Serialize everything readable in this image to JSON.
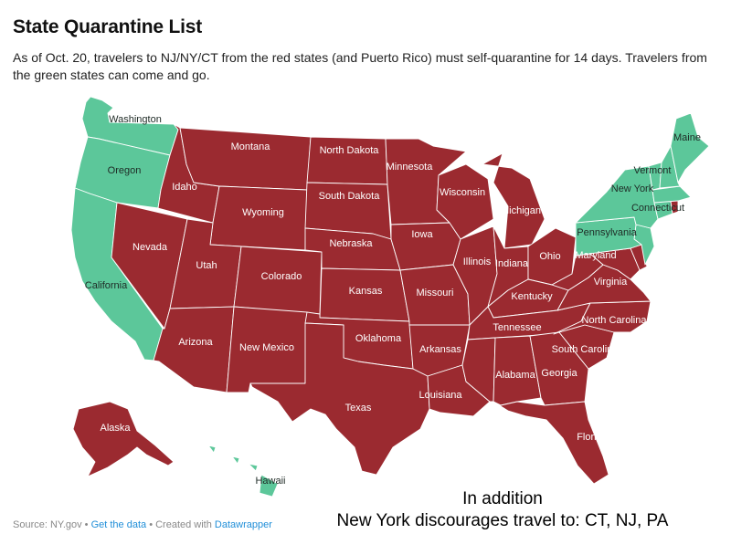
{
  "title": "State Quarantine List",
  "description": "As of Oct. 20, travelers to NJ/NY/CT from the red states (and Puerto Rico) must self-quarantine for 14 days. Travelers from the green states can come and go.",
  "colors": {
    "quarantine": "#9b2a30",
    "free": "#5cc79a",
    "border": "#ffffff"
  },
  "states": {
    "washington": {
      "label": "Washington",
      "status": "free"
    },
    "oregon": {
      "label": "Oregon",
      "status": "free"
    },
    "california": {
      "label": "California",
      "status": "free"
    },
    "idaho": {
      "label": "Idaho",
      "status": "quarantine"
    },
    "montana": {
      "label": "Montana",
      "status": "quarantine"
    },
    "wyoming": {
      "label": "Wyoming",
      "status": "quarantine"
    },
    "nevada": {
      "label": "Nevada",
      "status": "quarantine"
    },
    "utah": {
      "label": "Utah",
      "status": "quarantine"
    },
    "colorado": {
      "label": "Colorado",
      "status": "quarantine"
    },
    "arizona": {
      "label": "Arizona",
      "status": "quarantine"
    },
    "new_mexico": {
      "label": "New Mexico",
      "status": "quarantine"
    },
    "north_dakota": {
      "label": "North Dakota",
      "status": "quarantine"
    },
    "south_dakota": {
      "label": "South Dakota",
      "status": "quarantine"
    },
    "nebraska": {
      "label": "Nebraska",
      "status": "quarantine"
    },
    "kansas": {
      "label": "Kansas",
      "status": "quarantine"
    },
    "oklahoma": {
      "label": "Oklahoma",
      "status": "quarantine"
    },
    "texas": {
      "label": "Texas",
      "status": "quarantine"
    },
    "minnesota": {
      "label": "Minnesota",
      "status": "quarantine"
    },
    "iowa": {
      "label": "Iowa",
      "status": "quarantine"
    },
    "missouri": {
      "label": "Missouri",
      "status": "quarantine"
    },
    "arkansas": {
      "label": "Arkansas",
      "status": "quarantine"
    },
    "louisiana": {
      "label": "Louisiana",
      "status": "quarantine"
    },
    "wisconsin": {
      "label": "Wisconsin",
      "status": "quarantine"
    },
    "illinois": {
      "label": "Illinois",
      "status": "quarantine"
    },
    "michigan": {
      "label": "Michigan",
      "status": "quarantine"
    },
    "indiana": {
      "label": "Indiana",
      "status": "quarantine"
    },
    "ohio": {
      "label": "Ohio",
      "status": "quarantine"
    },
    "kentucky": {
      "label": "Kentucky",
      "status": "quarantine"
    },
    "tennessee": {
      "label": "Tennessee",
      "status": "quarantine"
    },
    "mississippi": {
      "label": "",
      "status": "quarantine"
    },
    "alabama": {
      "label": "Alabama",
      "status": "quarantine"
    },
    "georgia": {
      "label": "Georgia",
      "status": "quarantine"
    },
    "florida": {
      "label": "Florida",
      "status": "quarantine"
    },
    "south_carolina": {
      "label": "South Carolina",
      "status": "quarantine"
    },
    "north_carolina": {
      "label": "North Carolina",
      "status": "quarantine"
    },
    "virginia": {
      "label": "Virginia",
      "status": "quarantine"
    },
    "west_virginia": {
      "label": "",
      "status": "quarantine"
    },
    "maryland": {
      "label": "Maryland",
      "status": "quarantine"
    },
    "delaware": {
      "label": "",
      "status": "quarantine"
    },
    "new_jersey": {
      "label": "",
      "status": "free"
    },
    "pennsylvania": {
      "label": "Pennsylvania",
      "status": "free"
    },
    "new_york": {
      "label": "New York",
      "status": "free"
    },
    "connecticut": {
      "label": "Connecticut",
      "status": "free"
    },
    "rhode_island": {
      "label": "",
      "status": "quarantine"
    },
    "massachusetts": {
      "label": "",
      "status": "free"
    },
    "vermont": {
      "label": "Vermont",
      "status": "free"
    },
    "new_hampshire": {
      "label": "",
      "status": "free"
    },
    "maine": {
      "label": "Maine",
      "status": "free"
    },
    "alaska": {
      "label": "Alaska",
      "status": "quarantine"
    },
    "hawaii": {
      "label": "Hawaii",
      "status": "free"
    }
  },
  "footer": {
    "source": "Source: NY.gov",
    "sep1": " • ",
    "get_data": "Get the data",
    "sep2": " • ",
    "created": "Created with ",
    "datawrapper": "Datawrapper"
  },
  "addition": {
    "line1": "In addition",
    "line2": "New York discourages travel to: CT, NJ, PA"
  }
}
